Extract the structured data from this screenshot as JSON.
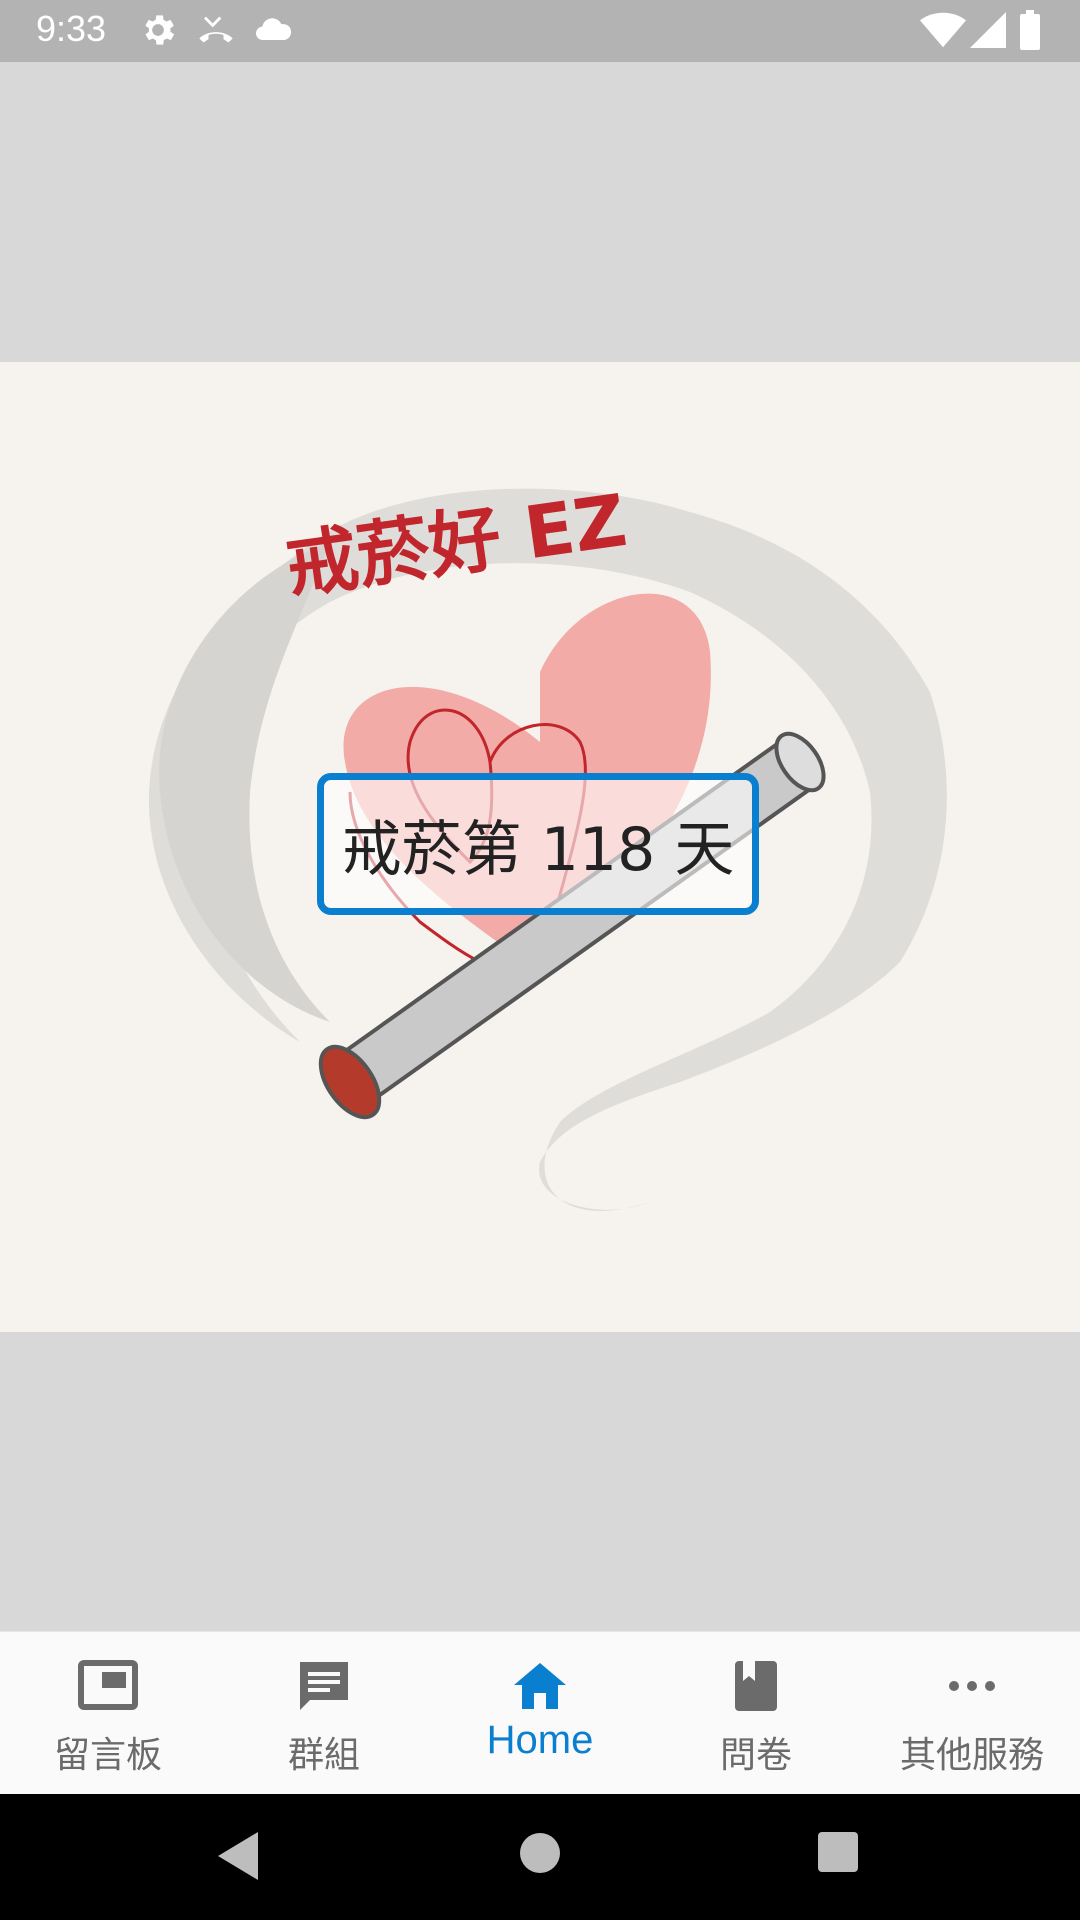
{
  "status_bar": {
    "time": "9:33",
    "icons": [
      "settings-icon",
      "missed-call-icon",
      "cloud-icon",
      "wifi-icon",
      "signal-icon",
      "battery-icon"
    ]
  },
  "hero": {
    "logo_text": "戒菸好 EZ",
    "counter_text": "戒菸第 118 天"
  },
  "bottom_nav": {
    "items": [
      {
        "label": "留言板",
        "icon": "message-board-icon"
      },
      {
        "label": "群組",
        "icon": "chat-group-icon"
      },
      {
        "label": "Home",
        "icon": "home-icon",
        "active": true
      },
      {
        "label": "問卷",
        "icon": "questionnaire-book-icon"
      },
      {
        "label": "其他服務",
        "icon": "more-dots-icon"
      }
    ]
  },
  "colors": {
    "accent": "#0b7fcf",
    "status_bar": "#b3b3b3",
    "logo_red": "#c0262b"
  }
}
